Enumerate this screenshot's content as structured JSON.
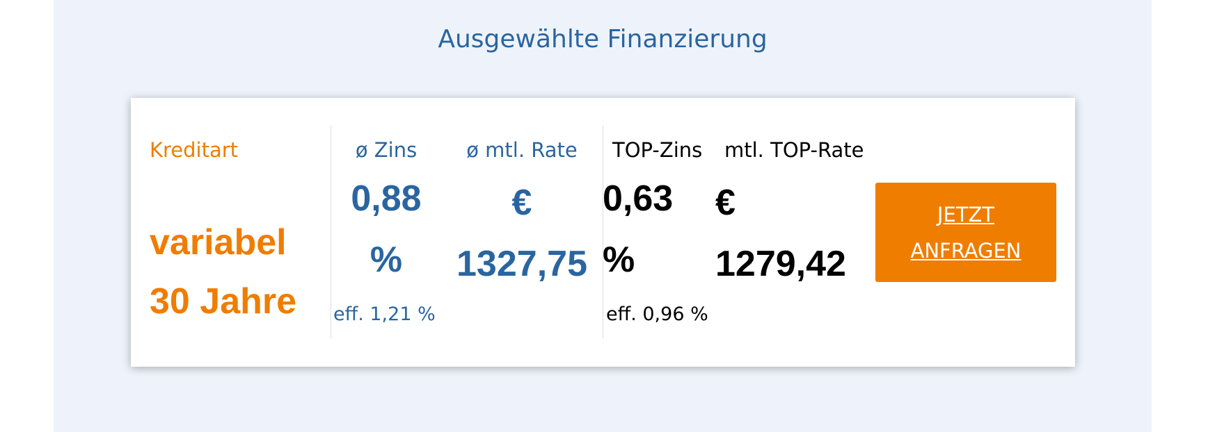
{
  "title": "Ausgewählte Finanzierung",
  "offer": {
    "loan_type": {
      "label": "Kreditart",
      "value": "variabel 30 Jahre"
    },
    "avg_rate": {
      "label": "ø Zins",
      "value": "0,88 %",
      "effective": "eff. 1,21 %"
    },
    "avg_monthly": {
      "label": "ø mtl. Rate",
      "value": "€ 1327,75"
    },
    "top_rate": {
      "label": "TOP-Zins",
      "value": "0,63 %",
      "effective": "eff. 0,96 %"
    },
    "top_monthly": {
      "label": "mtl. TOP-Rate",
      "value": "€ 1279,42"
    },
    "button": "JETZT ANFRAGEN"
  }
}
